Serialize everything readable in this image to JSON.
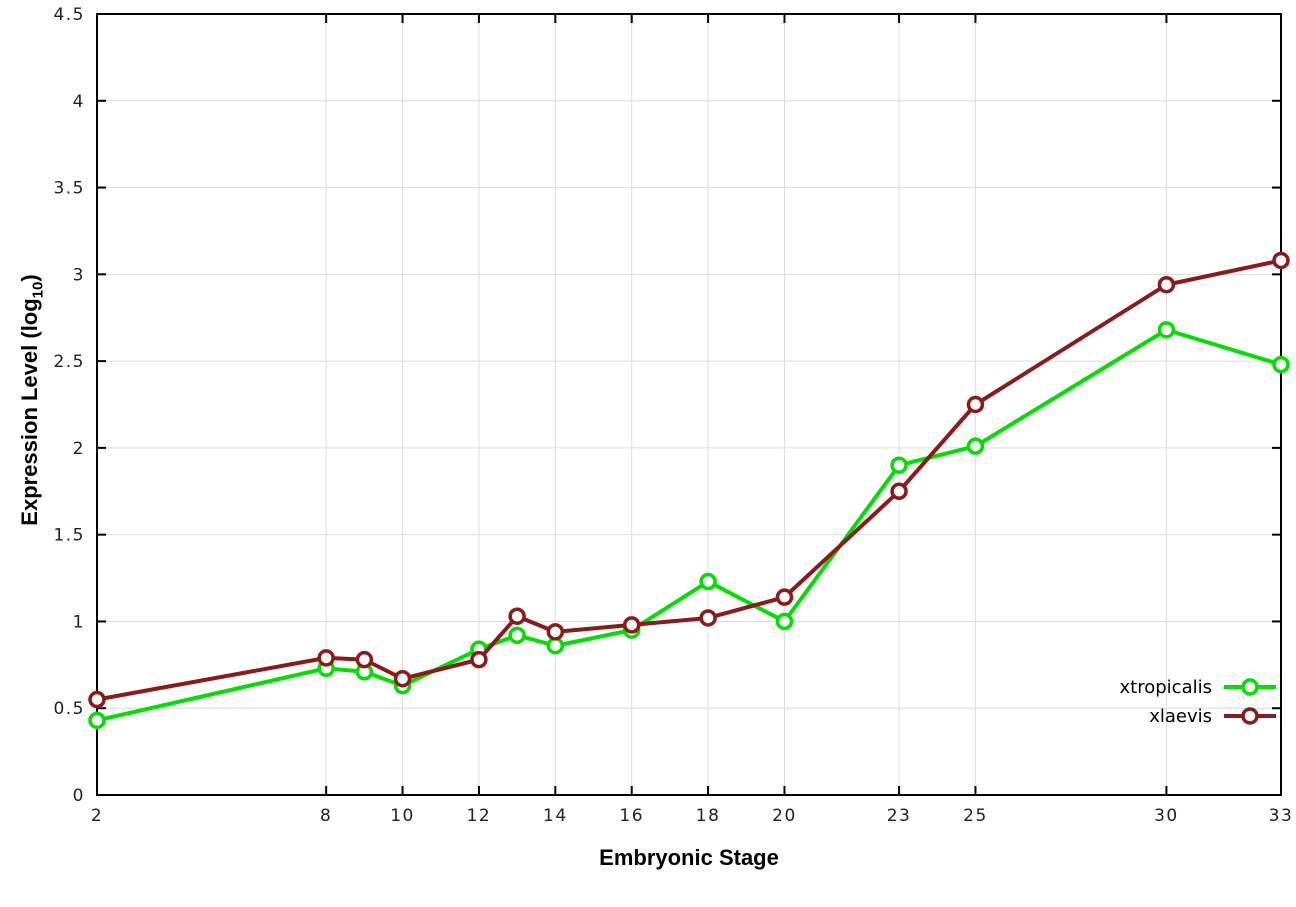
{
  "chart_data": {
    "type": "line",
    "title": "",
    "xlabel": "Embryonic Stage",
    "ylabel_parts": {
      "pre": "Expression Level (log",
      "sub": "10",
      "post": ")"
    },
    "x": [
      2,
      8,
      9,
      10,
      12,
      13,
      14,
      16,
      18,
      20,
      23,
      25,
      30,
      33
    ],
    "xtick_labels": [
      2,
      8,
      10,
      12,
      14,
      16,
      18,
      20,
      23,
      25,
      30,
      33
    ],
    "xlim": [
      2,
      33
    ],
    "ylim": [
      0,
      4.5
    ],
    "ytick_step": 0.5,
    "grid": true,
    "legend_position": "inside-bottom-right",
    "series": [
      {
        "name": "xtropicalis",
        "color": "#00e000",
        "marker": "open-circle",
        "values": [
          0.43,
          0.73,
          0.71,
          0.63,
          0.84,
          0.92,
          0.86,
          0.95,
          1.23,
          1.0,
          1.9,
          2.01,
          2.68,
          2.48
        ]
      },
      {
        "name": "xlaevis",
        "color": "#8b1a1a",
        "marker": "open-circle",
        "values": [
          0.55,
          0.79,
          0.78,
          0.67,
          0.78,
          1.03,
          0.94,
          0.98,
          1.02,
          1.14,
          1.75,
          2.25,
          2.94,
          3.08
        ]
      }
    ],
    "style": {
      "grid_color": "#dcdcdc",
      "border_color": "#000000",
      "tick_label_color": "#222222",
      "marker_fill": "#ffffff"
    }
  }
}
